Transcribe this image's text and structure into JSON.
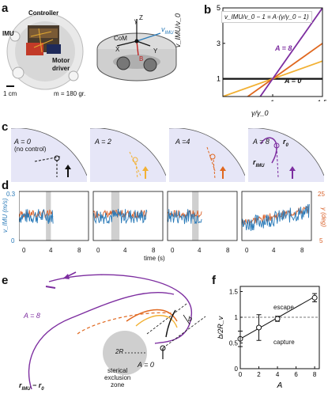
{
  "panel_a": {
    "label": "a",
    "controller": "Controller",
    "imu": "IMU",
    "motor_driver": "Motor\ndriver",
    "scale": "1 cm",
    "mass": "m = 180 gr.",
    "com": "CoM",
    "v_imu": "v",
    "v_imu_sub": "IMU",
    "axis_x": "X",
    "axis_y": "Y",
    "axis_z": "Z",
    "axis_z2": "Z",
    "axis_gamma": "γ",
    "axis_b": "B"
  },
  "panel_b": {
    "label": "b",
    "ylabel": "v_IMU/v_0",
    "xlabel": "γ/γ_0",
    "formula": "v_IMU/v_0 − 1 = A·(γ/γ_0 − 1)",
    "series_label_A8": "A = 8",
    "series_label_A0": "A = 0"
  },
  "panel_c": {
    "label": "c",
    "tiles": [
      {
        "title": "A = 0",
        "subtitle": "(no control)",
        "color": "#111111"
      },
      {
        "title": "A = 2",
        "subtitle": "",
        "color": "#f2b134"
      },
      {
        "title": "A =4",
        "subtitle": "",
        "color": "#e0681f"
      },
      {
        "title": "A = 8",
        "subtitle": "",
        "color": "#7d2ea0"
      }
    ],
    "r0": "r",
    "r0_sub": "0",
    "rimu": "r",
    "rimu_sub": "IMU"
  },
  "panel_d": {
    "label": "d",
    "ylabel_left": "v_IMU (m/s)",
    "ylabel_right": "γ (deg)",
    "xlabel": "time (s)",
    "left_ticks": [
      "0.3",
      "0"
    ],
    "right_ticks": [
      "25",
      "5"
    ],
    "subplots": [
      {
        "xticks": [
          "0",
          "4",
          "8"
        ]
      },
      {
        "xticks": [
          "0",
          "4",
          "8"
        ]
      },
      {
        "xticks": [
          "0",
          "4",
          "8"
        ]
      },
      {
        "xticks": [
          "0",
          "4",
          "8"
        ]
      }
    ]
  },
  "panel_e": {
    "label": "e",
    "a8": "A = 8",
    "a0": "A = 0",
    "b": "b",
    "two_r": "2R",
    "zone": "sterical\nexclusion\nzone",
    "vec": "r",
    "vec_sub": "IMU",
    "vec_rest": "− r",
    "vec_sub2": "0"
  },
  "panel_f": {
    "label": "f",
    "escape": "escape",
    "capture": "capture"
  },
  "colors": {
    "a0": "#111111",
    "a2": "#f2b134",
    "a4": "#e0681f",
    "a8": "#7d2ea0",
    "blue": "#2a7ab8",
    "orange_line": "#d9622b",
    "tile_bg": "#e6e6f7",
    "gray_band": "#cfcfcf"
  },
  "chart_data": [
    {
      "type": "line",
      "panel": "b",
      "title": "",
      "xlabel": "γ/γ_0",
      "ylabel": "v_IMU/v_0",
      "xlim": [
        0.5,
        1.5
      ],
      "ylim": [
        0,
        5
      ],
      "xticks": [
        "1",
        "1.5"
      ],
      "yticks": [
        "1",
        "3",
        "5"
      ],
      "series": [
        {
          "name": "A = 0",
          "x": [
            0.5,
            1.5
          ],
          "y": [
            1,
            1
          ]
        },
        {
          "name": "",
          "x": [
            0.5,
            1.5
          ],
          "y": [
            0,
            2
          ]
        },
        {
          "name": "",
          "x": [
            0.5,
            1.5
          ],
          "y": [
            -1,
            3
          ]
        },
        {
          "name": "A = 8",
          "x": [
            0.5,
            1.5
          ],
          "y": [
            -3,
            5
          ]
        }
      ]
    },
    {
      "type": "scatter",
      "panel": "f",
      "xlabel": "A",
      "ylabel": "b/2R_v",
      "xlim": [
        0,
        8.5
      ],
      "ylim": [
        0,
        1.6
      ],
      "xticks": [
        "0",
        "2",
        "4",
        "6",
        "8"
      ],
      "yticks": [
        "0",
        "0.5",
        "1",
        "1.5"
      ],
      "reference_line": 1,
      "series": [
        {
          "name": "",
          "x": [
            0,
            2,
            4,
            8
          ],
          "y": [
            0.58,
            0.8,
            0.97,
            1.38
          ],
          "err": [
            0.15,
            0.25,
            0.05,
            0.08
          ]
        },
        {
          "name": "",
          "x": [
            0,
            8
          ],
          "y": [
            0.58,
            1.4
          ]
        }
      ]
    }
  ]
}
